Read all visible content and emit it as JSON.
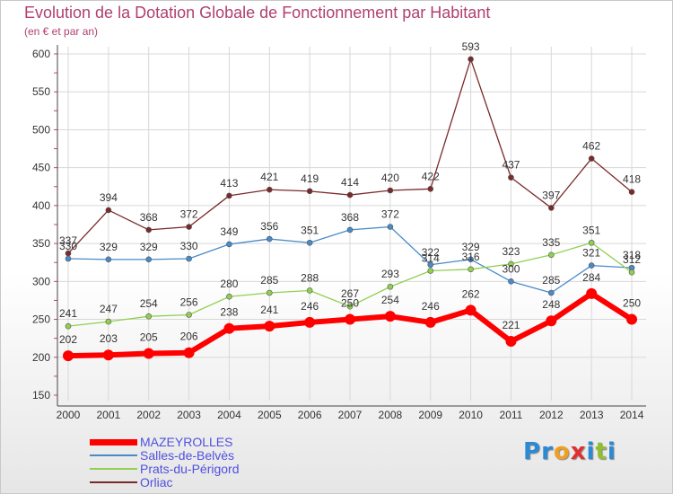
{
  "chart_data": {
    "type": "line",
    "title": "Evolution de la Dotation Globale de Fonctionnement par Habitant",
    "subtitle": "(en € et par an)",
    "x": [
      "2000",
      "2001",
      "2002",
      "2003",
      "2004",
      "2005",
      "2006",
      "2007",
      "2008",
      "2009",
      "2010",
      "2011",
      "2012",
      "2013",
      "2014"
    ],
    "ylim": [
      150,
      600
    ],
    "yticks": [
      150,
      200,
      250,
      300,
      350,
      400,
      450,
      500,
      550,
      600
    ],
    "grid": true,
    "series": [
      {
        "name": "MAZEYROLLES",
        "color": "#ff0000",
        "values": [
          202,
          203,
          205,
          206,
          238,
          241,
          246,
          250,
          254,
          246,
          262,
          221,
          248,
          284,
          250
        ]
      },
      {
        "name": "Salles-de-Belvès",
        "color": "#4a8ac8",
        "values": [
          330,
          329,
          329,
          330,
          349,
          356,
          351,
          368,
          372,
          322,
          329,
          300,
          285,
          321,
          318
        ]
      },
      {
        "name": "Prats-du-Périgord",
        "color": "#90d050",
        "values": [
          241,
          247,
          254,
          256,
          280,
          285,
          288,
          267,
          293,
          314,
          316,
          323,
          335,
          351,
          312
        ]
      },
      {
        "name": "Orliac",
        "color": "#7a2a2a",
        "values": [
          337,
          394,
          368,
          372,
          413,
          421,
          419,
          414,
          420,
          422,
          593,
          437,
          397,
          462,
          418
        ]
      }
    ]
  },
  "logo": {
    "text": "Proxiti",
    "letters": [
      "P",
      "r",
      "o",
      "x",
      "i",
      "t",
      "i"
    ],
    "colors": [
      "#2a8ad4",
      "#2a8ad4",
      "#f0a020",
      "#e03030",
      "#2a8ad4",
      "#90c030",
      "#2a8ad4"
    ]
  }
}
